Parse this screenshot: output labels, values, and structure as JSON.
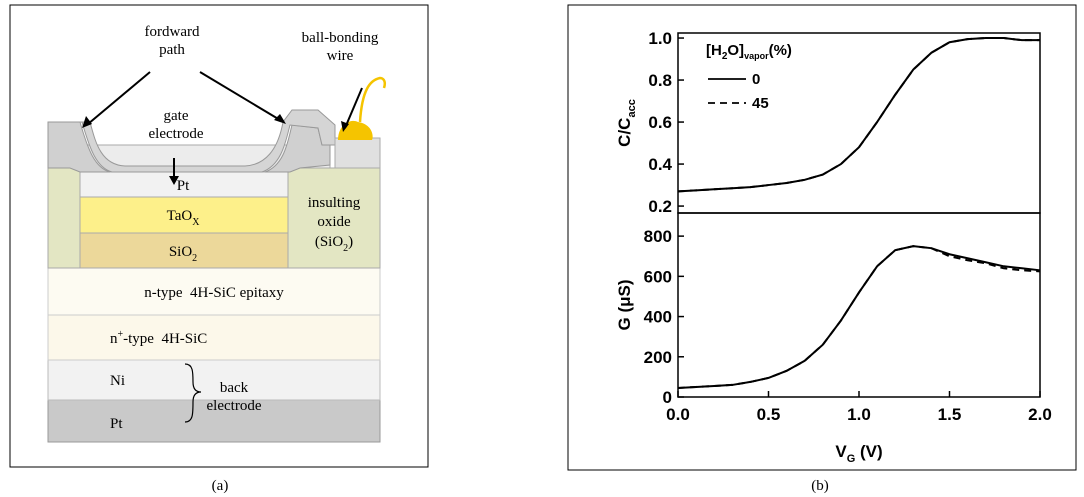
{
  "diagram": {
    "forward_path": [
      "fordward",
      "path"
    ],
    "wire": [
      "ball-bonding",
      "wire"
    ],
    "gate": [
      "gate",
      "electrode"
    ],
    "pt_top": "Pt",
    "taox": {
      "base": "TaO",
      "sub": "X"
    },
    "sio2": {
      "base": "SiO",
      "sub": "2"
    },
    "oxide": [
      "insulting",
      "oxide",
      {
        "base": "(SiO",
        "sub": "2",
        "tail": ")"
      }
    ],
    "epi": "n-type  4H-SiC epitaxy",
    "nplus": {
      "base": "n",
      "sup": "+",
      "tail": "-type  4H-SiC"
    },
    "ni": "Ni",
    "back": [
      "back",
      "electrode"
    ],
    "pt_bottom": "Pt",
    "caption": "(a)"
  },
  "caption_b": "(b)",
  "chart_data": [
    {
      "type": "line",
      "ylabel": {
        "base": "C/C",
        "sub": "acc"
      },
      "legend_title": [
        "[H",
        "2",
        "O]",
        "vapor",
        "(%)"
      ],
      "x": [
        0,
        0.1,
        0.2,
        0.3,
        0.4,
        0.5,
        0.6,
        0.7,
        0.8,
        0.9,
        1.0,
        1.1,
        1.2,
        1.3,
        1.4,
        1.5,
        1.6,
        1.7,
        1.8,
        1.9,
        2.0
      ],
      "series": [
        {
          "name": "0",
          "color": "#000000",
          "dash": false,
          "values": [
            0.27,
            0.275,
            0.28,
            0.285,
            0.29,
            0.3,
            0.31,
            0.325,
            0.35,
            0.4,
            0.48,
            0.6,
            0.73,
            0.85,
            0.93,
            0.98,
            0.995,
            1.0,
            1.0,
            0.99,
            0.99
          ]
        },
        {
          "name": "45",
          "color": "#000000",
          "dash": true,
          "values": [
            0.27,
            0.275,
            0.28,
            0.285,
            0.29,
            0.3,
            0.31,
            0.325,
            0.35,
            0.4,
            0.48,
            0.6,
            0.73,
            0.85,
            0.93,
            0.98,
            0.995,
            1.0,
            1.0,
            0.99,
            0.99
          ]
        }
      ],
      "xlim": [
        0,
        2.0
      ],
      "ylim": [
        0.167,
        1.024
      ],
      "yticks": [
        0.2,
        0.4,
        0.6,
        0.8,
        {
          "value": 1,
          "label": "1.0"
        }
      ]
    },
    {
      "type": "line",
      "ylabel": "G (μS)",
      "xlabel": {
        "base": "V",
        "sub": "G",
        "tail": " (V)"
      },
      "x": [
        0,
        0.1,
        0.2,
        0.3,
        0.4,
        0.5,
        0.6,
        0.7,
        0.8,
        0.9,
        1.0,
        1.1,
        1.2,
        1.3,
        1.4,
        1.5,
        1.6,
        1.7,
        1.8,
        1.9,
        2.0
      ],
      "series": [
        {
          "name": "0",
          "color": "#000000",
          "dash": false,
          "values": [
            45,
            50,
            55,
            60,
            75,
            95,
            130,
            180,
            260,
            380,
            520,
            650,
            730,
            750,
            740,
            710,
            690,
            670,
            650,
            640,
            630
          ]
        },
        {
          "name": "45",
          "color": "#000000",
          "dash": true,
          "values": [
            45,
            50,
            55,
            60,
            75,
            95,
            130,
            180,
            260,
            380,
            520,
            650,
            730,
            750,
            740,
            700,
            680,
            665,
            640,
            630,
            625
          ]
        }
      ],
      "xlim": [
        0,
        2.0
      ],
      "ylim": [
        0,
        915
      ],
      "xticks": [
        {
          "value": 0,
          "label": "0.0"
        },
        0.5,
        {
          "value": 1,
          "label": "1.0"
        },
        1.5,
        {
          "value": 2,
          "label": "2.0"
        }
      ],
      "yticks": [
        0,
        200,
        400,
        600,
        800
      ]
    }
  ]
}
